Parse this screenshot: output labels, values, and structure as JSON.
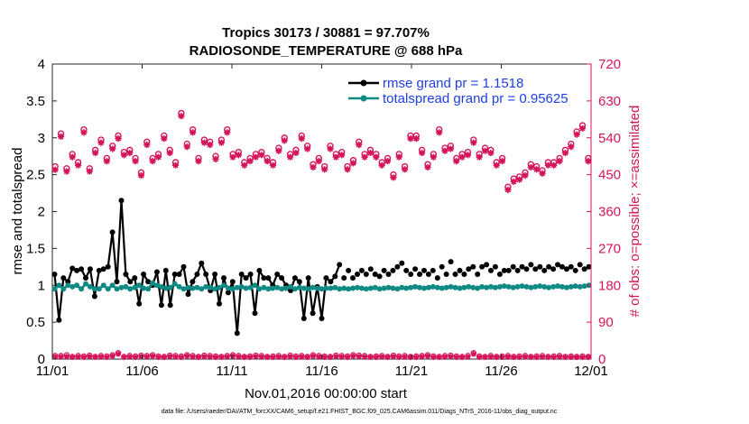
{
  "chart_data": {
    "type": "line",
    "title": "Tropics 30173 / 30881 = 97.707%",
    "subtitle": "RADIOSONDE_TEMPERATURE @ 688 hPa",
    "xlabel": "Nov.01,2016 00:00:00 start",
    "ylabel": "rmse and totalspread",
    "ylabel_right": "# of obs: o=possible; ×=assimilated",
    "footer": "data file: /Users/raeder/DAI/ATM_forcXX/CAM6_setup/f.e21.FHIST_BGC.f09_025.CAM6assim.011/Diags_NTrS_2016-11/obs_diag_output.nc",
    "xlim": [
      0,
      30
    ],
    "ylim": [
      0,
      4
    ],
    "ylim_right": [
      0,
      720
    ],
    "xticks": [
      0,
      5,
      10,
      15,
      20,
      25,
      30
    ],
    "xtick_labels": [
      "11/01",
      "11/06",
      "11/11",
      "11/16",
      "11/21",
      "11/26",
      "12/01"
    ],
    "yticks": [
      0,
      0.5,
      1,
      1.5,
      2,
      2.5,
      3,
      3.5,
      4
    ],
    "ytick_labels": [
      "0",
      "0.5",
      "1",
      "1.5",
      "2",
      "2.5",
      "3",
      "3.5",
      "4"
    ],
    "yticks_right": [
      0,
      90,
      180,
      270,
      360,
      450,
      540,
      630,
      720
    ],
    "ytick_labels_right": [
      "0",
      "90",
      "180",
      "270",
      "360",
      "450",
      "540",
      "630",
      "720"
    ],
    "legend_position": "top-right",
    "series": [
      {
        "name": "rmse grand pr = 1.1518",
        "color": "#000000",
        "values": [
          1.15,
          0.53,
          1.1,
          1.05,
          1.23,
          1.2,
          1.22,
          1.1,
          1.22,
          0.85,
          1.2,
          1.22,
          1.25,
          1.72,
          1.05,
          2.15,
          1.15,
          1.05,
          1.1,
          0.75,
          1.15,
          1.05,
          1.0,
          1.18,
          0.73,
          1.2,
          0.73,
          1.15,
          1.15,
          1.25,
          0.88,
          1.05,
          1.15,
          1.3,
          1.15,
          0.93,
          1.15,
          0.75,
          1.1,
          0.9,
          1.05,
          0.35,
          1.15,
          1.1,
          1.15,
          0.62,
          1.2,
          1.1,
          1.1,
          1.0,
          1.15,
          1.1,
          1.0,
          0.93,
          1.1,
          1.05,
          0.55,
          1.1,
          0.62,
          0.98,
          0.55,
          1.1,
          1.05,
          1.12,
          1.28,
          1.1,
          1.2,
          1.1,
          1.15,
          1.2,
          1.15,
          1.22,
          1.15,
          1.12,
          1.2,
          1.15,
          1.2,
          1.25,
          1.3,
          1.2,
          1.15,
          1.22,
          1.15,
          1.2,
          1.15,
          1.2,
          1.1,
          1.25,
          1.15,
          1.32,
          1.15,
          1.2,
          1.15,
          1.22,
          1.25,
          1.15,
          1.25,
          1.28,
          1.2,
          1.25,
          1.15,
          1.2,
          1.2,
          1.25,
          1.2,
          1.25,
          1.22,
          1.28,
          1.22,
          1.25,
          1.2,
          1.25,
          1.22,
          1.28,
          1.25,
          1.22,
          1.25,
          1.2,
          1.28,
          1.22,
          1.25
        ],
        "gap_after_index": 64
      },
      {
        "name": "totalspread grand pr = 0.95625",
        "color": "#108a84",
        "values": [
          0.95,
          1.0,
          0.95,
          1.0,
          0.98,
          1.0,
          0.95,
          1.02,
          0.98,
          0.95,
          0.95,
          1.0,
          0.95,
          1.0,
          0.95,
          0.97,
          0.98,
          0.95,
          0.97,
          1.0,
          0.96,
          0.95,
          1.03,
          1.0,
          0.98,
          0.96,
          0.97,
          1.02,
          0.98,
          0.95,
          0.97,
          0.96,
          0.97,
          0.95,
          0.98,
          0.97,
          0.95,
          0.97,
          1.0,
          0.96,
          0.95,
          0.97,
          0.98,
          0.96,
          0.97,
          1.0,
          0.95,
          0.97,
          0.95,
          0.96,
          0.97,
          0.95,
          0.96,
          0.98,
          0.95,
          0.97,
          0.96,
          0.95,
          0.97,
          0.96,
          0.95,
          0.96,
          0.96,
          0.97,
          0.95,
          0.96,
          0.95,
          0.96,
          0.97,
          0.96,
          0.95,
          0.96,
          0.97,
          0.95,
          0.96,
          0.97,
          0.96,
          0.95,
          0.97,
          0.96,
          0.97,
          0.98,
          0.97,
          0.96,
          0.97,
          0.98,
          0.97,
          0.96,
          0.97,
          0.98,
          0.97,
          0.96,
          0.97,
          0.98,
          0.97,
          0.96,
          0.98,
          0.97,
          0.98,
          0.97,
          0.98,
          0.99,
          0.98,
          0.97,
          0.98,
          0.99,
          0.98,
          0.97,
          0.98,
          0.99,
          0.98,
          0.97,
          0.98,
          0.99,
          0.98,
          0.97,
          0.98,
          0.99,
          0.98,
          0.99,
          1.0
        ],
        "gap_after_index": 64
      }
    ],
    "obs_possible": [
      470,
      550,
      465,
      500,
      480,
      560,
      465,
      510,
      535,
      490,
      520,
      545,
      505,
      510,
      490,
      455,
      530,
      490,
      500,
      545,
      510,
      480,
      600,
      525,
      560,
      490,
      535,
      530,
      495,
      535,
      560,
      500,
      505,
      480,
      490,
      500,
      505,
      490,
      480,
      515,
      540,
      500,
      510,
      545,
      520,
      475,
      490,
      470,
      520,
      500,
      505,
      470,
      485,
      530,
      500,
      510,
      500,
      480,
      490,
      450,
      500,
      470,
      545,
      545,
      510,
      475,
      500,
      560,
      515,
      520,
      490,
      500,
      505,
      535,
      500,
      515,
      510,
      480,
      490,
      420,
      440,
      445,
      455,
      475,
      470,
      460,
      480,
      480,
      490,
      510,
      525,
      555,
      570,
      490
    ],
    "obs_assimilated": [
      462,
      543,
      458,
      493,
      473,
      553,
      458,
      503,
      528,
      483,
      513,
      538,
      498,
      503,
      483,
      448,
      523,
      483,
      493,
      538,
      503,
      473,
      593,
      518,
      553,
      483,
      528,
      523,
      488,
      528,
      553,
      493,
      498,
      473,
      483,
      493,
      498,
      483,
      473,
      508,
      533,
      493,
      503,
      538,
      513,
      468,
      483,
      463,
      513,
      493,
      498,
      463,
      478,
      523,
      493,
      503,
      493,
      473,
      483,
      443,
      493,
      463,
      538,
      538,
      503,
      468,
      493,
      553,
      508,
      513,
      483,
      493,
      498,
      528,
      493,
      508,
      503,
      473,
      483,
      413,
      433,
      438,
      448,
      468,
      463,
      453,
      473,
      473,
      483,
      503,
      518,
      548,
      563,
      483
    ],
    "obs_possible_low": [
      8,
      8,
      10,
      6,
      8,
      7,
      9,
      6,
      8,
      7,
      10,
      15,
      6,
      8,
      7,
      9,
      8,
      10,
      7,
      6,
      9,
      8,
      7,
      10,
      8,
      6,
      9,
      8,
      7,
      6,
      8,
      10,
      8,
      6,
      7,
      9,
      8,
      6,
      7,
      8,
      6,
      9,
      7,
      8,
      6,
      10,
      8,
      7,
      6,
      9,
      8,
      7,
      10,
      9,
      8,
      6,
      7,
      8,
      6,
      9,
      7,
      8,
      6,
      7,
      8,
      10,
      7,
      6,
      8,
      9,
      7,
      6,
      8,
      15,
      7,
      6,
      8,
      6,
      7,
      8,
      6,
      7,
      8,
      6,
      7,
      8,
      6,
      7,
      8,
      6,
      7,
      6,
      7,
      6
    ],
    "obs_assimilated_low": [
      5,
      5,
      6,
      4,
      5,
      4,
      6,
      4,
      5,
      4,
      7,
      12,
      4,
      5,
      4,
      6,
      5,
      7,
      4,
      4,
      6,
      5,
      4,
      7,
      5,
      4,
      6,
      5,
      4,
      4,
      5,
      7,
      5,
      4,
      4,
      6,
      5,
      4,
      4,
      5,
      4,
      6,
      4,
      5,
      4,
      7,
      5,
      4,
      4,
      6,
      5,
      4,
      7,
      6,
      5,
      4,
      4,
      5,
      4,
      6,
      4,
      5,
      4,
      4,
      5,
      7,
      4,
      4,
      5,
      6,
      4,
      4,
      5,
      12,
      4,
      4,
      5,
      4,
      4,
      5,
      4,
      4,
      5,
      4,
      4,
      5,
      4,
      4,
      5,
      4,
      4,
      4,
      4,
      4
    ]
  }
}
